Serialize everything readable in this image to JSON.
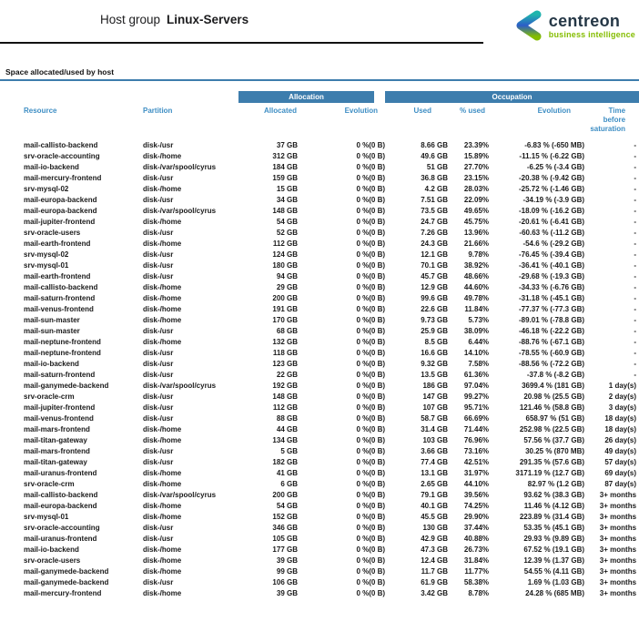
{
  "page": {
    "title_prefix": "Host group",
    "title_name": "Linux-Servers"
  },
  "logo": {
    "brand": "centreon",
    "tagline": "business intelligence"
  },
  "section_title": "Space allocated/used by host",
  "colors": {
    "band_blue": "#3d7dad",
    "column_header_blue": "#3e8ec4",
    "brand_navy": "#253746",
    "brand_green": "#84bd00",
    "rule_black": "#111111"
  },
  "table": {
    "band_allocation": "Allocation",
    "band_occupation": "Occupation",
    "columns": {
      "resource": "Resource",
      "partition": "Partition",
      "allocated": "Allocated",
      "evolution_allocation": "Evolution",
      "used": "Used",
      "pct_used": "% used",
      "evolution_occupation": "Evolution",
      "time_before_saturation": "Time before saturation"
    },
    "rows": [
      [
        "mail-callisto-backend",
        "disk-/usr",
        "37 GB",
        "0 %(0 B)",
        "8.66 GB",
        "23.39%",
        "-6.83 % (-650 MB)",
        "-"
      ],
      [
        "srv-oracle-accounting",
        "disk-/home",
        "312 GB",
        "0 %(0 B)",
        "49.6 GB",
        "15.89%",
        "-11.15 % (-6.22 GB)",
        "-"
      ],
      [
        "mail-io-backend",
        "disk-/var/spool/cyrus",
        "184 GB",
        "0 %(0 B)",
        "51 GB",
        "27.70%",
        "-6.25 % (-3.4 GB)",
        "-"
      ],
      [
        "mail-mercury-frontend",
        "disk-/usr",
        "159 GB",
        "0 %(0 B)",
        "36.8 GB",
        "23.15%",
        "-20.38 % (-9.42 GB)",
        "-"
      ],
      [
        "srv-mysql-02",
        "disk-/home",
        "15 GB",
        "0 %(0 B)",
        "4.2 GB",
        "28.03%",
        "-25.72 % (-1.46 GB)",
        "-"
      ],
      [
        "mail-europa-backend",
        "disk-/usr",
        "34 GB",
        "0 %(0 B)",
        "7.51 GB",
        "22.09%",
        "-34.19 % (-3.9 GB)",
        "-"
      ],
      [
        "mail-europa-backend",
        "disk-/var/spool/cyrus",
        "148 GB",
        "0 %(0 B)",
        "73.5 GB",
        "49.65%",
        "-18.09 % (-16.2 GB)",
        "-"
      ],
      [
        "mail-jupiter-frontend",
        "disk-/home",
        "54 GB",
        "0 %(0 B)",
        "24.7 GB",
        "45.75%",
        "-20.61 % (-6.41 GB)",
        "-"
      ],
      [
        "srv-oracle-users",
        "disk-/usr",
        "52 GB",
        "0 %(0 B)",
        "7.26 GB",
        "13.96%",
        "-60.63 % (-11.2 GB)",
        "-"
      ],
      [
        "mail-earth-frontend",
        "disk-/home",
        "112 GB",
        "0 %(0 B)",
        "24.3 GB",
        "21.66%",
        "-54.6 % (-29.2 GB)",
        "-"
      ],
      [
        "srv-mysql-02",
        "disk-/usr",
        "124 GB",
        "0 %(0 B)",
        "12.1 GB",
        "9.78%",
        "-76.45 % (-39.4 GB)",
        "-"
      ],
      [
        "srv-mysql-01",
        "disk-/usr",
        "180 GB",
        "0 %(0 B)",
        "70.1 GB",
        "38.92%",
        "-36.41 % (-40.1 GB)",
        "-"
      ],
      [
        "mail-earth-frontend",
        "disk-/usr",
        "94 GB",
        "0 %(0 B)",
        "45.7 GB",
        "48.66%",
        "-29.68 % (-19.3 GB)",
        "-"
      ],
      [
        "mail-callisto-backend",
        "disk-/home",
        "29 GB",
        "0 %(0 B)",
        "12.9 GB",
        "44.60%",
        "-34.33 % (-6.76 GB)",
        "-"
      ],
      [
        "mail-saturn-frontend",
        "disk-/home",
        "200 GB",
        "0 %(0 B)",
        "99.6 GB",
        "49.78%",
        "-31.18 % (-45.1 GB)",
        "-"
      ],
      [
        "mail-venus-frontend",
        "disk-/home",
        "191 GB",
        "0 %(0 B)",
        "22.6 GB",
        "11.84%",
        "-77.37 % (-77.3 GB)",
        "-"
      ],
      [
        "mail-sun-master",
        "disk-/home",
        "170 GB",
        "0 %(0 B)",
        "9.73 GB",
        "5.73%",
        "-89.01 % (-78.8 GB)",
        "-"
      ],
      [
        "mail-sun-master",
        "disk-/usr",
        "68 GB",
        "0 %(0 B)",
        "25.9 GB",
        "38.09%",
        "-46.18 % (-22.2 GB)",
        "-"
      ],
      [
        "mail-neptune-frontend",
        "disk-/home",
        "132 GB",
        "0 %(0 B)",
        "8.5 GB",
        "6.44%",
        "-88.76 % (-67.1 GB)",
        "-"
      ],
      [
        "mail-neptune-frontend",
        "disk-/usr",
        "118 GB",
        "0 %(0 B)",
        "16.6 GB",
        "14.10%",
        "-78.55 % (-60.9 GB)",
        "-"
      ],
      [
        "mail-io-backend",
        "disk-/usr",
        "123 GB",
        "0 %(0 B)",
        "9.32 GB",
        "7.58%",
        "-88.56 % (-72.2 GB)",
        "-"
      ],
      [
        "mail-saturn-frontend",
        "disk-/usr",
        "22 GB",
        "0 %(0 B)",
        "13.5 GB",
        "61.36%",
        "-37.8 % (-8.2 GB)",
        "-"
      ],
      [
        "mail-ganymede-backend",
        "disk-/var/spool/cyrus",
        "192 GB",
        "0 %(0 B)",
        "186 GB",
        "97.04%",
        "3699.4 % (181 GB)",
        "1 day(s)"
      ],
      [
        "srv-oracle-crm",
        "disk-/usr",
        "148 GB",
        "0 %(0 B)",
        "147 GB",
        "99.27%",
        "20.98 % (25.5 GB)",
        "2 day(s)"
      ],
      [
        "mail-jupiter-frontend",
        "disk-/usr",
        "112 GB",
        "0 %(0 B)",
        "107 GB",
        "95.71%",
        "121.46 % (58.8 GB)",
        "3 day(s)"
      ],
      [
        "mail-venus-frontend",
        "disk-/usr",
        "88 GB",
        "0 %(0 B)",
        "58.7 GB",
        "66.69%",
        "658.97 % (51 GB)",
        "18 day(s)"
      ],
      [
        "mail-mars-frontend",
        "disk-/home",
        "44 GB",
        "0 %(0 B)",
        "31.4 GB",
        "71.44%",
        "252.98 % (22.5 GB)",
        "18 day(s)"
      ],
      [
        "mail-titan-gateway",
        "disk-/home",
        "134 GB",
        "0 %(0 B)",
        "103 GB",
        "76.96%",
        "57.56 % (37.7 GB)",
        "26 day(s)"
      ],
      [
        "mail-mars-frontend",
        "disk-/usr",
        "5 GB",
        "0 %(0 B)",
        "3.66 GB",
        "73.16%",
        "30.25 % (870 MB)",
        "49 day(s)"
      ],
      [
        "mail-titan-gateway",
        "disk-/usr",
        "182 GB",
        "0 %(0 B)",
        "77.4 GB",
        "42.51%",
        "291.35 % (57.6 GB)",
        "57 day(s)"
      ],
      [
        "mail-uranus-frontend",
        "disk-/home",
        "41 GB",
        "0 %(0 B)",
        "13.1 GB",
        "31.97%",
        "3171.19 % (12.7 GB)",
        "69 day(s)"
      ],
      [
        "srv-oracle-crm",
        "disk-/home",
        "6 GB",
        "0 %(0 B)",
        "2.65 GB",
        "44.10%",
        "82.97 % (1.2 GB)",
        "87 day(s)"
      ],
      [
        "mail-callisto-backend",
        "disk-/var/spool/cyrus",
        "200 GB",
        "0 %(0 B)",
        "79.1 GB",
        "39.56%",
        "93.62 % (38.3 GB)",
        "3+ months"
      ],
      [
        "mail-europa-backend",
        "disk-/home",
        "54 GB",
        "0 %(0 B)",
        "40.1 GB",
        "74.25%",
        "11.46 % (4.12 GB)",
        "3+ months"
      ],
      [
        "srv-mysql-01",
        "disk-/home",
        "152 GB",
        "0 %(0 B)",
        "45.5 GB",
        "29.90%",
        "223.89 % (31.4 GB)",
        "3+ months"
      ],
      [
        "srv-oracle-accounting",
        "disk-/usr",
        "346 GB",
        "0 %(0 B)",
        "130 GB",
        "37.44%",
        "53.35 % (45.1 GB)",
        "3+ months"
      ],
      [
        "mail-uranus-frontend",
        "disk-/usr",
        "105 GB",
        "0 %(0 B)",
        "42.9 GB",
        "40.88%",
        "29.93 % (9.89 GB)",
        "3+ months"
      ],
      [
        "mail-io-backend",
        "disk-/home",
        "177 GB",
        "0 %(0 B)",
        "47.3 GB",
        "26.73%",
        "67.52 % (19.1 GB)",
        "3+ months"
      ],
      [
        "srv-oracle-users",
        "disk-/home",
        "39 GB",
        "0 %(0 B)",
        "12.4 GB",
        "31.84%",
        "12.39 % (1.37 GB)",
        "3+ months"
      ],
      [
        "mail-ganymede-backend",
        "disk-/home",
        "99 GB",
        "0 %(0 B)",
        "11.7 GB",
        "11.77%",
        "54.55 % (4.11 GB)",
        "3+ months"
      ],
      [
        "mail-ganymede-backend",
        "disk-/usr",
        "106 GB",
        "0 %(0 B)",
        "61.9 GB",
        "58.38%",
        "1.69 % (1.03 GB)",
        "3+ months"
      ],
      [
        "mail-mercury-frontend",
        "disk-/home",
        "39 GB",
        "0 %(0 B)",
        "3.42 GB",
        "8.78%",
        "24.28 % (685 MB)",
        "3+ months"
      ]
    ]
  }
}
